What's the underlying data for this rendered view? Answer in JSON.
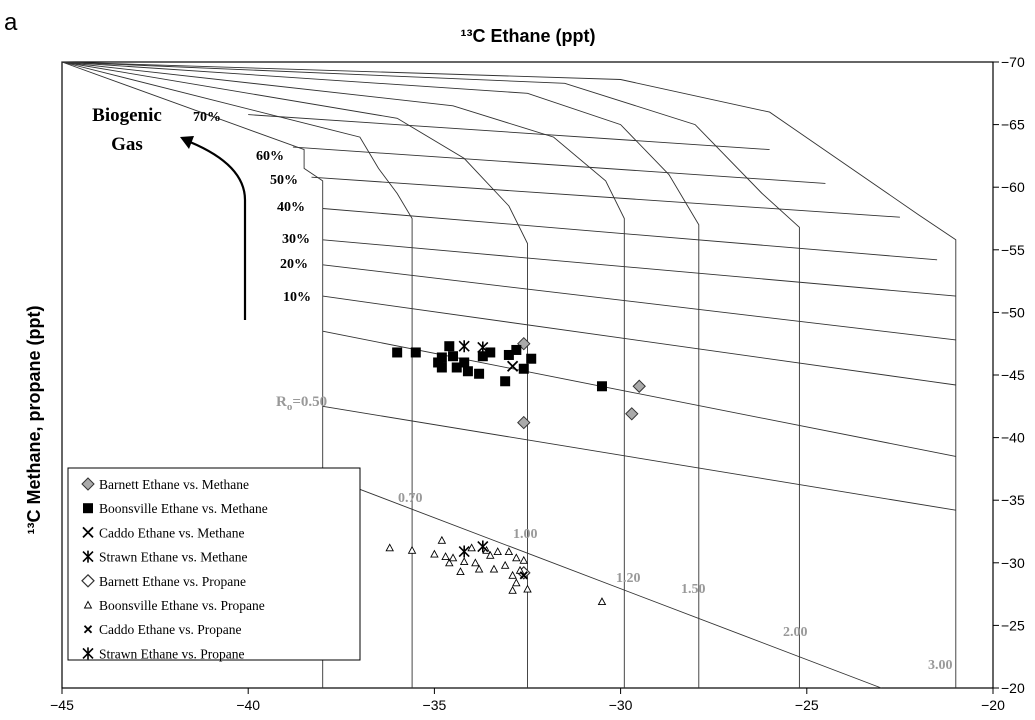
{
  "panel_label": "a",
  "chart_data": {
    "type": "scatter",
    "title": "¹³C Ethane (ppt)",
    "xlabel": "",
    "ylabel": "¹³C Methane, propane (ppt)",
    "xlim": [
      -45,
      -20
    ],
    "ylim": [
      -20,
      -70
    ],
    "x_ticks": [
      "−45",
      "−40",
      "−35",
      "−30",
      "−25",
      "−20"
    ],
    "y_ticks": [
      "−70",
      "−65",
      "−60",
      "−55",
      "−50",
      "−45",
      "−40",
      "−35",
      "−30",
      "−25",
      "−20"
    ],
    "grid": false,
    "legend_position": "bottom-left",
    "series": [
      {
        "name": "Barnett Ethane vs. Methane",
        "marker": "diamond-gray",
        "points": [
          [
            -32.6,
            -47.5
          ],
          [
            -29.5,
            -44.1
          ],
          [
            -29.7,
            -41.9
          ],
          [
            -32.6,
            -41.2
          ]
        ]
      },
      {
        "name": "Boonsville Ethane vs. Methane",
        "marker": "square-black",
        "points": [
          [
            -36.0,
            -46.8
          ],
          [
            -35.5,
            -46.8
          ],
          [
            -34.9,
            -46.0
          ],
          [
            -34.8,
            -45.6
          ],
          [
            -34.8,
            -46.4
          ],
          [
            -34.6,
            -47.3
          ],
          [
            -34.5,
            -46.5
          ],
          [
            -34.4,
            -45.6
          ],
          [
            -34.2,
            -46.0
          ],
          [
            -34.1,
            -45.3
          ],
          [
            -33.8,
            -45.1
          ],
          [
            -33.7,
            -46.5
          ],
          [
            -33.5,
            -46.8
          ],
          [
            -33.1,
            -44.5
          ],
          [
            -33.0,
            -46.6
          ],
          [
            -32.8,
            -47.0
          ],
          [
            -32.6,
            -45.5
          ],
          [
            -32.4,
            -46.3
          ],
          [
            -30.5,
            -44.1
          ]
        ]
      },
      {
        "name": "Caddo Ethane vs. Methane",
        "marker": "x",
        "points": [
          [
            -32.9,
            -45.7
          ]
        ]
      },
      {
        "name": "Strawn Ethane vs. Methane",
        "marker": "asterisk",
        "points": [
          [
            -34.2,
            -47.3
          ],
          [
            -33.7,
            -47.2
          ]
        ]
      },
      {
        "name": "Barnett Ethane vs. Propane",
        "marker": "diamond-open",
        "points": [
          [
            -32.6,
            -29.2
          ]
        ]
      },
      {
        "name": "Boonsville Ethane vs. Propane",
        "marker": "triangle",
        "points": [
          [
            -36.2,
            -31.2
          ],
          [
            -35.6,
            -31.0
          ],
          [
            -35.0,
            -30.7
          ],
          [
            -34.8,
            -31.8
          ],
          [
            -34.7,
            -30.5
          ],
          [
            -34.6,
            -30.0
          ],
          [
            -34.5,
            -30.4
          ],
          [
            -34.3,
            -29.3
          ],
          [
            -34.2,
            -30.1
          ],
          [
            -34.0,
            -31.2
          ],
          [
            -33.9,
            -30.0
          ],
          [
            -33.8,
            -29.5
          ],
          [
            -33.6,
            -31.0
          ],
          [
            -33.5,
            -30.6
          ],
          [
            -33.4,
            -29.5
          ],
          [
            -33.3,
            -30.9
          ],
          [
            -33.1,
            -29.8
          ],
          [
            -33.0,
            -30.9
          ],
          [
            -32.9,
            -29.0
          ],
          [
            -32.8,
            -30.4
          ],
          [
            -32.8,
            -28.4
          ],
          [
            -32.7,
            -29.4
          ],
          [
            -32.6,
            -30.2
          ],
          [
            -32.5,
            -27.9
          ],
          [
            -32.9,
            -27.8
          ],
          [
            -30.5,
            -26.9
          ]
        ]
      },
      {
        "name": "Caddo Ethane vs. Propane",
        "marker": "x-small",
        "points": [
          [
            -32.6,
            -29.0
          ]
        ]
      },
      {
        "name": "Strawn Ethane vs. Propane",
        "marker": "asterisk",
        "points": [
          [
            -34.2,
            -30.9
          ],
          [
            -33.7,
            -31.3
          ]
        ]
      }
    ],
    "annotations": {
      "biogenic": [
        "Biogenic",
        "Gas"
      ],
      "percent_labels": [
        "70%",
        "60%",
        "50%",
        "40%",
        "30%",
        "20%",
        "10%"
      ],
      "ro_labels": [
        "R",
        "o",
        "=0.50",
        "0.70",
        "1.00",
        "1.20",
        "1.50",
        "2.00",
        "3.00"
      ]
    },
    "model_grid": {
      "ro_curves": [
        {
          "ro": 0.5,
          "points": [
            [
              -45,
              -70
            ],
            [
              -38.5,
              -63
            ],
            [
              -38.5,
              -61.5
            ],
            [
              -38.0,
              -60.5
            ],
            [
              -38.0,
              -20
            ]
          ]
        },
        {
          "ro": 0.7,
          "points": [
            [
              -45,
              -70
            ],
            [
              -37.0,
              -64
            ],
            [
              -36.5,
              -61.5
            ],
            [
              -36.0,
              -59.5
            ],
            [
              -35.6,
              -57.5
            ],
            [
              -35.6,
              -20
            ]
          ]
        },
        {
          "ro": 1.0,
          "points": [
            [
              -45,
              -70
            ],
            [
              -36.0,
              -65.5
            ],
            [
              -34.2,
              -62.3
            ],
            [
              -33.0,
              -58.5
            ],
            [
              -32.5,
              -55.5
            ],
            [
              -32.5,
              -20
            ]
          ]
        },
        {
          "ro": 1.2,
          "points": [
            [
              -45,
              -70
            ],
            [
              -34.5,
              -66.5
            ],
            [
              -31.8,
              -64
            ],
            [
              -30.4,
              -60.5
            ],
            [
              -29.9,
              -57.5
            ],
            [
              -29.9,
              -20
            ]
          ]
        },
        {
          "ro": 1.5,
          "points": [
            [
              -45,
              -70
            ],
            [
              -32.5,
              -67.5
            ],
            [
              -30.0,
              -65
            ],
            [
              -28.7,
              -61
            ],
            [
              -27.9,
              -57
            ],
            [
              -27.9,
              -20
            ]
          ]
        },
        {
          "ro": 2.0,
          "points": [
            [
              -45,
              -70
            ],
            [
              -31.5,
              -68.3
            ],
            [
              -28.0,
              -65
            ],
            [
              -26.2,
              -59.5
            ],
            [
              -25.2,
              -56.8
            ],
            [
              -25.2,
              -20
            ]
          ]
        },
        {
          "ro": 3.0,
          "points": [
            [
              -45,
              -70
            ],
            [
              -30.0,
              -68.6
            ],
            [
              -26.0,
              -66
            ],
            [
              -22.0,
              -57.8
            ],
            [
              -21.0,
              -55.8
            ],
            [
              -21.0,
              -20
            ]
          ]
        }
      ],
      "percent_lines": [
        {
          "label": "70%",
          "points": [
            [
              -40.0,
              -65.8
            ],
            [
              -26.0,
              -63.0
            ]
          ]
        },
        {
          "label": "60%",
          "points": [
            [
              -38.8,
              -63.2
            ],
            [
              -24.5,
              -60.3
            ]
          ]
        },
        {
          "label": "50%",
          "points": [
            [
              -38.3,
              -60.8
            ],
            [
              -22.5,
              -57.6
            ]
          ]
        },
        {
          "label": "40%",
          "points": [
            [
              -38.0,
              -58.3
            ],
            [
              -21.5,
              -54.2
            ]
          ]
        },
        {
          "label": "30%",
          "points": [
            [
              -38.0,
              -55.8
            ],
            [
              -21.0,
              -51.3
            ]
          ]
        },
        {
          "label": "20%",
          "points": [
            [
              -38.0,
              -53.8
            ],
            [
              -21.0,
              -47.8
            ]
          ]
        },
        {
          "label": "10%",
          "points": [
            [
              -38.0,
              -51.3
            ],
            [
              -21.0,
              -44.2
            ]
          ]
        },
        {
          "label": "",
          "points": [
            [
              -38.0,
              -48.5
            ],
            [
              -21.0,
              -38.5
            ]
          ]
        },
        {
          "label": "",
          "points": [
            [
              -38.0,
              -42.5
            ],
            [
              -21.0,
              -34.2
            ]
          ]
        },
        {
          "label": "",
          "points": [
            [
              -38.0,
              -37.0
            ],
            [
              -23.0,
              -20.0
            ]
          ]
        }
      ]
    }
  }
}
